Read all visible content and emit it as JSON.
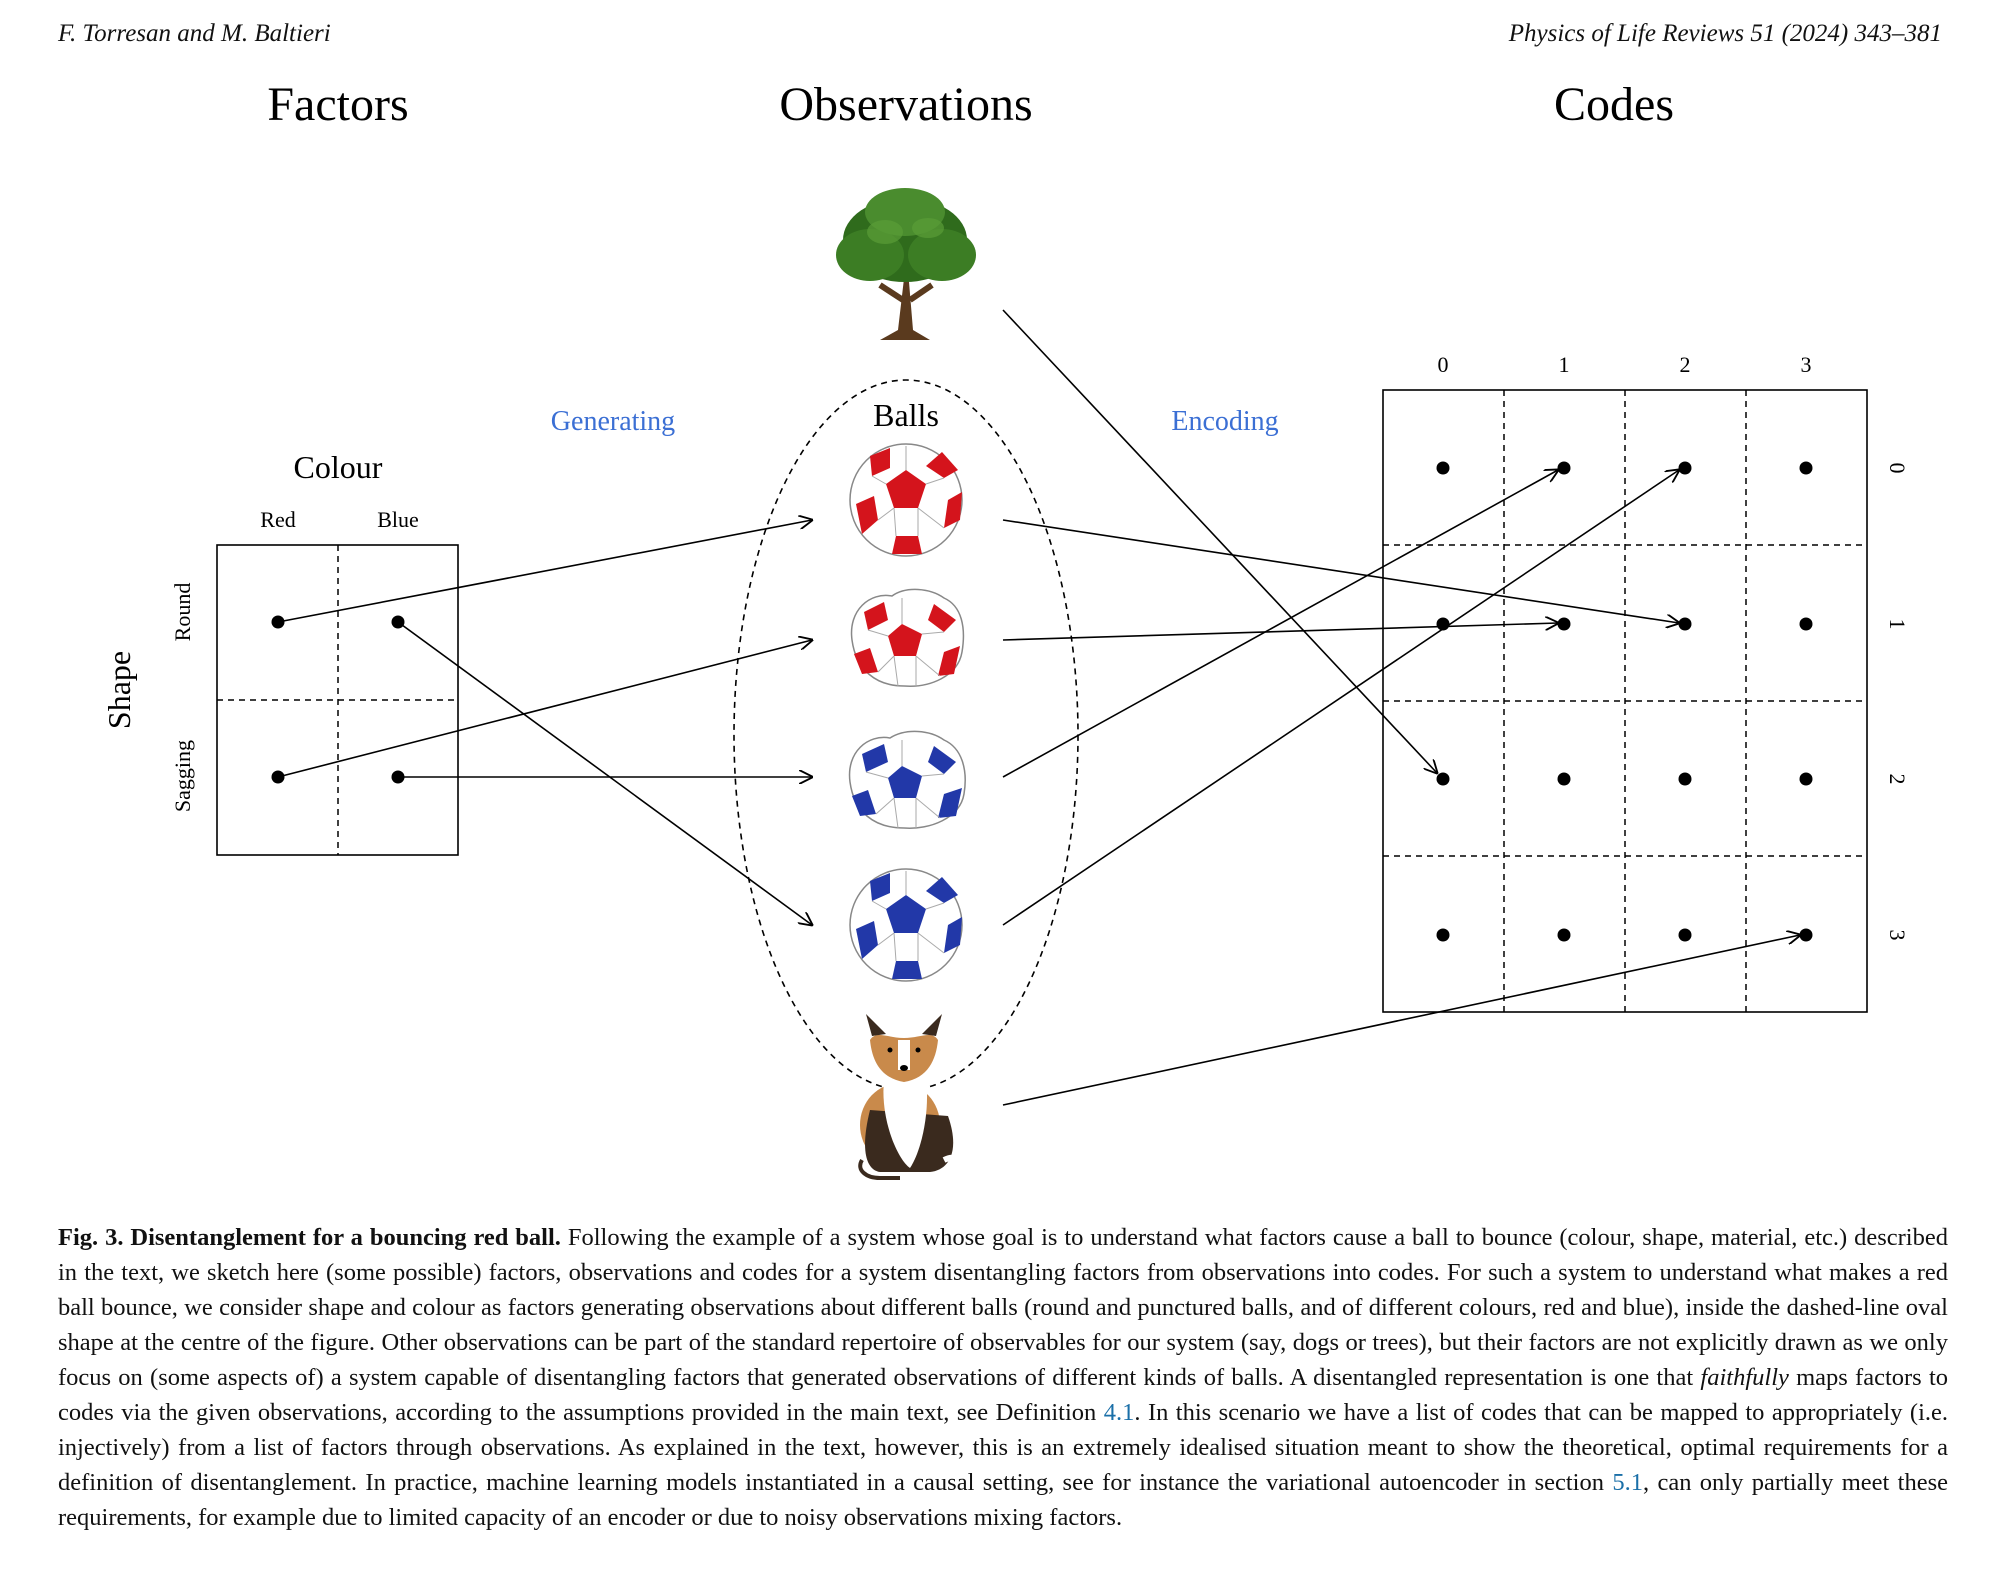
{
  "header": {
    "authors": "F. Torresan and M. Baltieri",
    "journal": "Physics of Life Reviews 51 (2024) 343–381"
  },
  "figure": {
    "titles": {
      "factors": "Factors",
      "observations": "Observations",
      "codes": "Codes"
    },
    "arrow_labels": {
      "generating": "Generating",
      "encoding": "Encoding"
    },
    "factors": {
      "colour_label": "Colour",
      "colour_values": [
        "Red",
        "Blue"
      ],
      "shape_label": "Shape",
      "shape_values": [
        "Round",
        "Sagging"
      ]
    },
    "observations": {
      "balls_label": "Balls",
      "items": [
        "tree",
        "red round ball",
        "red sagging ball",
        "blue sagging ball",
        "blue round ball",
        "dog"
      ]
    },
    "codes": {
      "column_labels": [
        "0",
        "1",
        "2",
        "3"
      ],
      "row_labels": [
        "0",
        "1",
        "2",
        "3"
      ]
    },
    "colors": {
      "label_blue": "#3b6fd4",
      "ball_red": "#d4141c",
      "ball_blue": "#2238a8"
    }
  },
  "caption": {
    "label": "Fig. 3. Disentanglement for a bouncing red ball.",
    "part1": " Following the example of a system whose goal is to understand what factors cause a ball to bounce (colour, shape, material, etc.) described in the text, we sketch here (some possible) factors, observations and codes for a system disentangling factors from observations into codes. For such a system to understand what makes a red ball bounce, we consider shape and colour as factors generating observations about different balls (round and punctured balls, and of different colours, red and blue), inside the dashed-line oval shape at the centre of the figure. Other observations can be part of the standard repertoire of observables for our system (say, dogs or trees), but their factors are not explicitly drawn as we only focus on (some aspects of) a system capable of disentangling factors that generated observations of different kinds of balls. A disentangled representation is one that ",
    "emph": "faithfully",
    "part2": " maps factors to codes via the given observations, according to the assumptions provided in the main text, see Definition ",
    "ref1": "4.1",
    "part3": ". In this scenario we have a list of codes that can be mapped to appropriately (i.e. injectively) from a list of factors through observations. As explained in the text, however, this is an extremely idealised situation meant to show the theoretical, optimal requirements for a definition of disentanglement. In practice, machine learning models instantiated in a causal setting, see for instance the variational autoencoder in section ",
    "ref2": "5.1",
    "part4": ", can only partially meet these requirements, for example due to limited capacity of an encoder or due to noisy observations mixing factors."
  }
}
